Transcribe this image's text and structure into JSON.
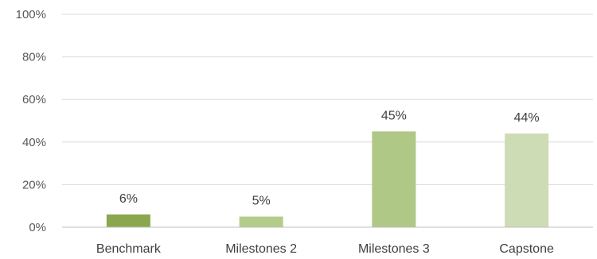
{
  "chart_data": {
    "type": "bar",
    "categories": [
      "Benchmark",
      "Milestones 2",
      "Milestones 3",
      "Capstone"
    ],
    "values": [
      6,
      5,
      45,
      44
    ],
    "data_labels": [
      "6%",
      "5%",
      "45%",
      "44%"
    ],
    "ylim": [
      0,
      100
    ],
    "yticks": [
      0,
      20,
      40,
      60,
      80,
      100
    ],
    "ytick_labels": [
      "0%",
      "20%",
      "40%",
      "60%",
      "80%",
      "100%"
    ],
    "bar_colors": [
      "#8ba74e",
      "#b4cc8a",
      "#afc886",
      "#cddcb4"
    ],
    "grid": true,
    "legend": "none",
    "title": "",
    "xlabel": "",
    "ylabel": ""
  }
}
